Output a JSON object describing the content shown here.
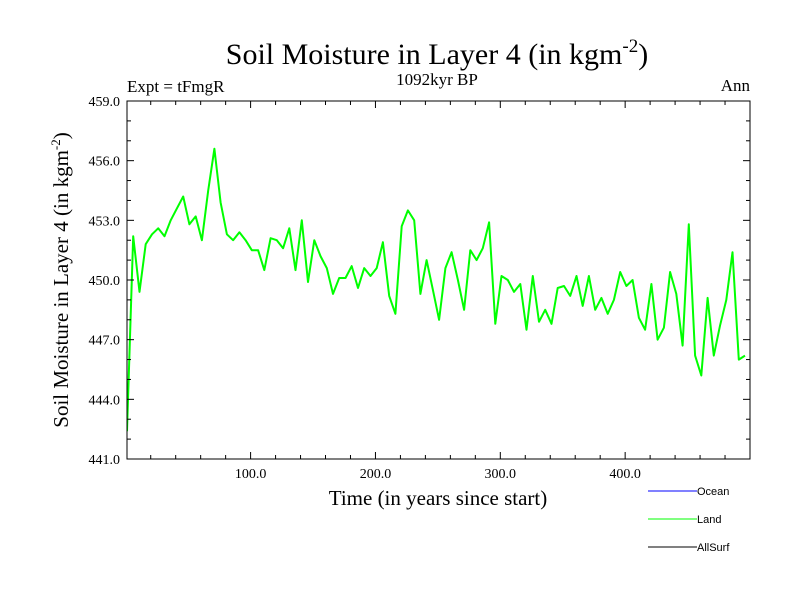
{
  "chart_data": {
    "type": "line",
    "title": "Soil Moisture in Layer 4 (in kgm",
    "title_sup": "-2",
    "title_end": ")",
    "subtitle": "1092kyr BP",
    "left_label": "Expt = tFmgR",
    "right_label": "Ann",
    "xlabel": "Time (in years since start)",
    "ylabel": "Soil Moisture in Layer 4 (in kgm",
    "ylabel_sup": "-2",
    "ylabel_end": ")",
    "xlim": [
      1,
      500
    ],
    "ylim": [
      441.0,
      459.0
    ],
    "x_ticks": [
      100,
      200,
      300,
      400
    ],
    "x_tick_labels": [
      "100.0",
      "200.0",
      "300.0",
      "400.0"
    ],
    "y_ticks": [
      441,
      444,
      447,
      450,
      453,
      456,
      459
    ],
    "y_tick_labels": [
      "441.0",
      "444.0",
      "447.0",
      "450.0",
      "453.0",
      "456.0",
      "459.0"
    ],
    "legend": [
      {
        "name": "Ocean",
        "color": "#0000ff"
      },
      {
        "name": "Land",
        "color": "#00ff00"
      },
      {
        "name": "AllSurf",
        "color": "#000000"
      }
    ],
    "series": [
      {
        "name": "Land",
        "color": "#00ff00",
        "x_start": 1,
        "x_step": 5,
        "values": [
          442.4,
          452.2,
          449.4,
          451.8,
          452.3,
          452.6,
          452.2,
          453.0,
          453.6,
          454.2,
          452.8,
          453.2,
          452.0,
          454.5,
          456.6,
          453.9,
          452.3,
          452.0,
          452.4,
          452.0,
          451.5,
          451.5,
          450.5,
          452.1,
          452.0,
          451.6,
          452.6,
          450.5,
          453.0,
          449.9,
          452.0,
          451.2,
          450.6,
          449.3,
          450.1,
          450.1,
          450.7,
          449.6,
          450.6,
          450.2,
          450.6,
          451.9,
          449.2,
          448.3,
          452.7,
          453.5,
          453.0,
          449.3,
          451.0,
          449.5,
          448.0,
          450.6,
          451.4,
          450.0,
          448.5,
          451.5,
          451.0,
          451.6,
          452.9,
          447.8,
          450.2,
          450.0,
          449.4,
          449.8,
          447.5,
          450.2,
          447.9,
          448.5,
          447.8,
          449.6,
          449.7,
          449.2,
          450.2,
          448.7,
          450.2,
          448.5,
          449.1,
          448.3,
          449.0,
          450.4,
          449.7,
          450.0,
          448.1,
          447.5,
          449.8,
          447.0,
          447.6,
          450.4,
          449.3,
          446.7,
          452.8,
          446.2,
          445.2,
          449.1,
          446.2,
          447.7,
          449.0,
          451.4,
          446.0,
          446.2
        ]
      }
    ]
  }
}
